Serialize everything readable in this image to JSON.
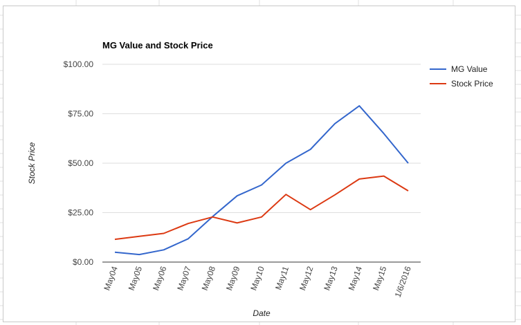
{
  "chart_data": {
    "type": "line",
    "title": "MG Value and Stock Price",
    "xlabel": "Date",
    "ylabel": "Stock Price",
    "categories": [
      "May04",
      "May05",
      "May06",
      "May07",
      "May08",
      "May09",
      "May10",
      "May11",
      "May12",
      "May13",
      "May14",
      "May15",
      "1/6/2016"
    ],
    "y_ticks": [
      "$0.00",
      "$25.00",
      "$50.00",
      "$75.00",
      "$100.00"
    ],
    "ylim": [
      0,
      100
    ],
    "grid": true,
    "legend": "right",
    "series": [
      {
        "name": "MG Value",
        "color": "#3366cc",
        "values": [
          5.0,
          3.8,
          6.2,
          11.8,
          23.0,
          33.5,
          39.0,
          50.0,
          57.0,
          70.0,
          79.0,
          65.0,
          50.0
        ]
      },
      {
        "name": "Stock Price",
        "color": "#dc3912",
        "values": [
          11.5,
          13.0,
          14.5,
          19.5,
          22.8,
          19.8,
          22.8,
          34.2,
          26.5,
          34.0,
          42.0,
          43.5,
          36.0
        ]
      }
    ]
  }
}
